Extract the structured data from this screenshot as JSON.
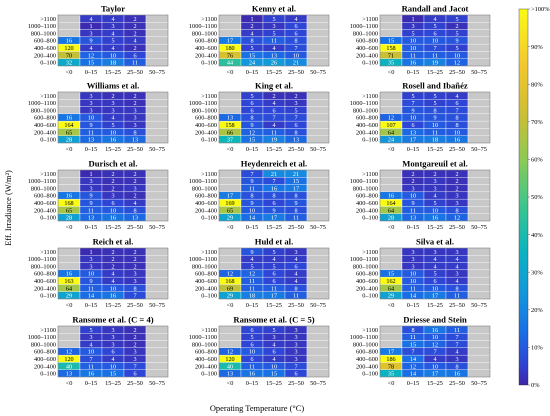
{
  "chart_data": {
    "type": "heatmap",
    "xlabel": "Operating Temperature (°C)",
    "ylabel": "Eff. Irradiance (W/m²)",
    "x_categories": [
      "<0",
      "0–15",
      "15–25",
      "25–50",
      "50–75"
    ],
    "y_categories": [
      ">1100",
      "1000–1100",
      "800–1000",
      "600–800",
      "400–600",
      "200–400",
      "0–100"
    ],
    "colorbar": {
      "ticks": [
        "0%",
        "10%",
        "20%",
        "30%",
        "40%",
        "50%",
        "60%",
        "70%",
        "80%",
        "90%",
        ">100%"
      ],
      "min": 0,
      "max": 100
    },
    "panels": [
      {
        "title": "Taylor",
        "values": [
          [
            null,
            4,
            4,
            2,
            null
          ],
          [
            null,
            1,
            3,
            2,
            null
          ],
          [
            null,
            3,
            4,
            2,
            null
          ],
          [
            16,
            9,
            5,
            4,
            null
          ],
          [
            120,
            4,
            4,
            2,
            null
          ],
          [
            70,
            12,
            10,
            6,
            null
          ],
          [
            32,
            15,
            18,
            11,
            null
          ]
        ]
      },
      {
        "title": "Kenny et al.",
        "values": [
          [
            null,
            1,
            5,
            4,
            null
          ],
          [
            null,
            2,
            3,
            6,
            null
          ],
          [
            null,
            4,
            5,
            6,
            null
          ],
          [
            17,
            8,
            11,
            8,
            null
          ],
          [
            180,
            5,
            4,
            7,
            null
          ],
          [
            76,
            15,
            13,
            10,
            null
          ],
          [
            44,
            24,
            26,
            21,
            null
          ]
        ]
      },
      {
        "title": "Randall and Jacot",
        "values": [
          [
            null,
            1,
            4,
            5,
            null
          ],
          [
            null,
            3,
            5,
            2,
            null
          ],
          [
            null,
            5,
            6,
            5,
            null
          ],
          [
            15,
            10,
            10,
            9,
            null
          ],
          [
            158,
            10,
            7,
            5,
            null
          ],
          [
            71,
            11,
            11,
            10,
            null
          ],
          [
            35,
            16,
            19,
            12,
            null
          ]
        ]
      },
      {
        "title": "Williams et al.",
        "values": [
          [
            null,
            3,
            2,
            2,
            null
          ],
          [
            null,
            3,
            3,
            2,
            null
          ],
          [
            null,
            3,
            3,
            3,
            null
          ],
          [
            16,
            10,
            4,
            3,
            null
          ],
          [
            164,
            9,
            5,
            3,
            null
          ],
          [
            65,
            11,
            10,
            8,
            null
          ],
          [
            28,
            13,
            16,
            13,
            null
          ]
        ]
      },
      {
        "title": "King et al.",
        "values": [
          [
            null,
            5,
            2,
            2,
            null
          ],
          [
            null,
            6,
            4,
            3,
            null
          ],
          [
            null,
            6,
            6,
            5,
            null
          ],
          [
            13,
            8,
            7,
            7,
            null
          ],
          [
            158,
            9,
            4,
            6,
            null
          ],
          [
            66,
            12,
            11,
            8,
            null
          ],
          [
            37,
            15,
            19,
            13,
            null
          ]
        ]
      },
      {
        "title": "Rosell and Ibañéz",
        "values": [
          [
            null,
            5,
            5,
            4,
            null
          ],
          [
            null,
            7,
            5,
            6,
            null
          ],
          [
            null,
            9,
            8,
            7,
            null
          ],
          [
            12,
            10,
            9,
            8,
            null
          ],
          [
            107,
            6,
            10,
            8,
            null
          ],
          [
            64,
            13,
            11,
            10,
            null
          ],
          [
            24,
            17,
            18,
            16,
            null
          ]
        ]
      },
      {
        "title": "Durisch et al.",
        "values": [
          [
            null,
            1,
            2,
            2,
            null
          ],
          [
            null,
            3,
            2,
            2,
            null
          ],
          [
            null,
            3,
            2,
            3,
            null
          ],
          [
            16,
            9,
            3,
            2,
            null
          ],
          [
            168,
            9,
            6,
            4,
            null
          ],
          [
            65,
            11,
            10,
            8,
            null
          ],
          [
            28,
            13,
            16,
            13,
            null
          ]
        ]
      },
      {
        "title": "Heydenreich et al.",
        "values": [
          [
            null,
            7,
            21,
            21,
            null
          ],
          [
            null,
            9,
            7,
            15,
            null
          ],
          [
            null,
            11,
            16,
            17,
            null
          ],
          [
            17,
            8,
            8,
            8,
            null
          ],
          [
            169,
            9,
            6,
            9,
            null
          ],
          [
            65,
            10,
            9,
            8,
            null
          ],
          [
            29,
            14,
            17,
            11,
            null
          ]
        ]
      },
      {
        "title": "Montgareuil et al.",
        "values": [
          [
            null,
            2,
            2,
            2,
            null
          ],
          [
            null,
            2,
            3,
            2,
            null
          ],
          [
            null,
            3,
            3,
            2,
            null
          ],
          [
            16,
            10,
            4,
            3,
            null
          ],
          [
            164,
            9,
            5,
            3,
            null
          ],
          [
            64,
            11,
            10,
            8,
            null
          ],
          [
            28,
            13,
            16,
            12,
            null
          ]
        ]
      },
      {
        "title": "Reich et al.",
        "values": [
          [
            null,
            1,
            2,
            2,
            null
          ],
          [
            null,
            3,
            2,
            2,
            null
          ],
          [
            null,
            3,
            2,
            2,
            null
          ],
          [
            16,
            10,
            4,
            3,
            null
          ],
          [
            163,
            9,
            4,
            3,
            null
          ],
          [
            64,
            11,
            10,
            8,
            null
          ],
          [
            29,
            14,
            16,
            7,
            null
          ]
        ]
      },
      {
        "title": "Huld et al.",
        "values": [
          [
            null,
            9,
            5,
            3,
            null
          ],
          [
            null,
            4,
            4,
            4,
            null
          ],
          [
            null,
            5,
            5,
            6,
            null
          ],
          [
            12,
            12,
            6,
            4,
            null
          ],
          [
            168,
            11,
            6,
            4,
            null
          ],
          [
            69,
            11,
            11,
            8,
            null
          ],
          [
            29,
            18,
            17,
            11,
            null
          ]
        ]
      },
      {
        "title": "Silva et al.",
        "values": [
          [
            null,
            3,
            3,
            3,
            null
          ],
          [
            null,
            3,
            4,
            4,
            null
          ],
          [
            null,
            3,
            4,
            4,
            null
          ],
          [
            15,
            10,
            5,
            3,
            null
          ],
          [
            162,
            10,
            6,
            4,
            null
          ],
          [
            64,
            11,
            10,
            8,
            null
          ],
          [
            29,
            14,
            17,
            11,
            null
          ]
        ]
      },
      {
        "title": "Ransome et al. (C = 4)",
        "values": [
          [
            null,
            5,
            3,
            2,
            null
          ],
          [
            null,
            3,
            3,
            2,
            null
          ],
          [
            null,
            4,
            3,
            2,
            null
          ],
          [
            12,
            10,
            6,
            3,
            null
          ],
          [
            120,
            7,
            4,
            3,
            null
          ],
          [
            40,
            11,
            10,
            7,
            null
          ],
          [
            13,
            16,
            15,
            6,
            null
          ]
        ]
      },
      {
        "title": "Ransome et al. (C = 5)",
        "values": [
          [
            null,
            6,
            5,
            3,
            null
          ],
          [
            null,
            5,
            3,
            3,
            null
          ],
          [
            null,
            6,
            4,
            3,
            null
          ],
          [
            12,
            10,
            6,
            3,
            null
          ],
          [
            120,
            6,
            4,
            3,
            null
          ],
          [
            40,
            11,
            10,
            7,
            null
          ],
          [
            13,
            16,
            15,
            6,
            null
          ]
        ]
      },
      {
        "title": "Driesse and Stein",
        "values": [
          [
            null,
            8,
            16,
            11,
            null
          ],
          [
            null,
            11,
            10,
            7,
            null
          ],
          [
            null,
            15,
            12,
            7,
            null
          ],
          [
            17,
            7,
            7,
            4,
            null
          ],
          [
            186,
            14,
            4,
            3,
            null
          ],
          [
            78,
            12,
            10,
            8,
            null
          ],
          [
            35,
            14,
            17,
            16,
            null
          ]
        ]
      }
    ]
  }
}
